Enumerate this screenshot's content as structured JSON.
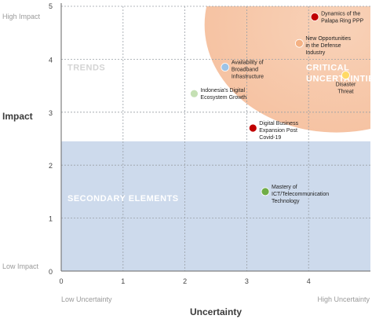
{
  "chart_data": {
    "type": "scatter",
    "title": "",
    "xlabel": "Uncertainty",
    "ylabel": "Impact",
    "xlim": [
      0,
      5
    ],
    "ylim": [
      0,
      5
    ],
    "x_ticks": [
      "0",
      "1",
      "2",
      "3",
      "4"
    ],
    "y_ticks": [
      "0",
      "1",
      "2",
      "3",
      "4",
      "5"
    ],
    "x_end_labels": {
      "low": "Low Uncertainty",
      "high": "High Uncertainty"
    },
    "y_end_labels": {
      "low": "Low Impact",
      "high": "High Impact"
    },
    "grid": "dashed",
    "regions": [
      {
        "name": "Trends",
        "label": "TRENDS",
        "color": "#ffffff",
        "text_color": "#d4d4d4"
      },
      {
        "name": "Critical Uncertainties",
        "label": [
          "CRITICAL",
          "UNCERTAINTIES"
        ],
        "color": "#f6c9ad",
        "text_color": "#ffffff"
      },
      {
        "name": "Secondary Elements",
        "label": "SECONDARY ELEMENTS",
        "color": "#cddaec",
        "text_color": "#ffffff",
        "y_range": [
          0,
          2.45
        ]
      }
    ],
    "points": [
      {
        "x": 4.1,
        "y": 4.8,
        "color": "#c00000",
        "label": [
          "Dynamics of the",
          "Palapa Ring PPP"
        ]
      },
      {
        "x": 3.85,
        "y": 4.3,
        "color": "#f4b183",
        "label": [
          "New Opportunities",
          "in the Defense",
          "Industry"
        ]
      },
      {
        "x": 4.6,
        "y": 3.7,
        "color": "#ffd966",
        "label": [
          "Disaster",
          "Threat"
        ]
      },
      {
        "x": 2.65,
        "y": 3.85,
        "color": "#9dc3e6",
        "label": [
          "Availability of",
          "Broadband",
          "Infrastructure"
        ]
      },
      {
        "x": 2.15,
        "y": 3.35,
        "color": "#c5e0b4",
        "label": [
          "Indonesia's Digital",
          "Ecosystem Growth"
        ]
      },
      {
        "x": 3.1,
        "y": 2.7,
        "color": "#c00000",
        "label": [
          "Digital Business",
          "Expansion Post",
          "Covid-19"
        ]
      },
      {
        "x": 3.3,
        "y": 1.5,
        "color": "#70ad47",
        "label": [
          "Mastery of",
          "ICT/Telecommunication",
          "Technology"
        ]
      }
    ]
  }
}
